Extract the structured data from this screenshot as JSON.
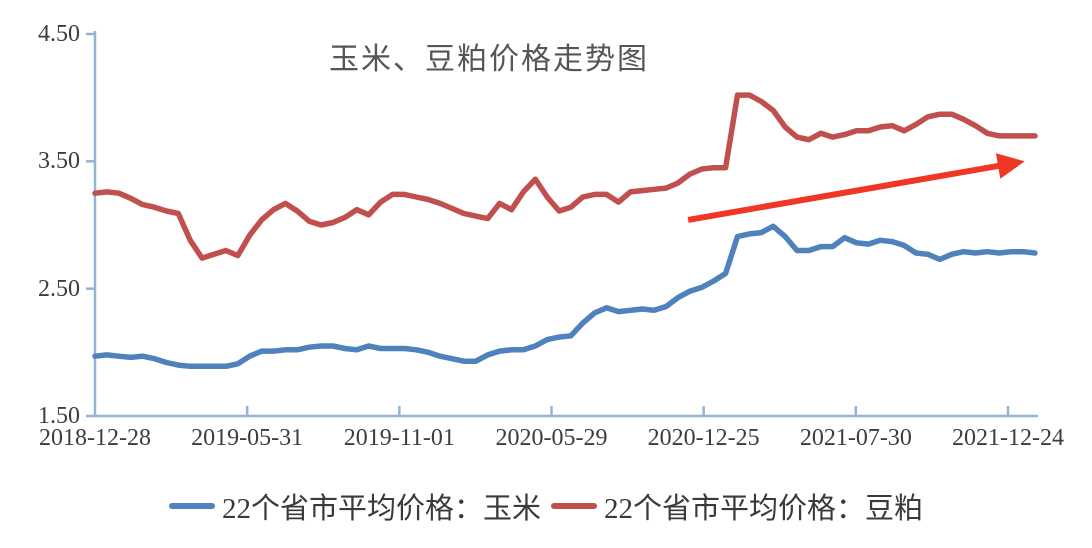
{
  "chart_data": {
    "type": "line",
    "title": "玉米、豆粕价格走势图",
    "xlabel": "",
    "ylabel": "",
    "ylim": [
      1.5,
      4.5
    ],
    "grid": false,
    "legend_position": "bottom",
    "y_ticks": {
      "values": [
        4.5,
        3.5,
        2.5,
        1.5
      ],
      "labels": [
        "4.50",
        "3.50",
        "2.50",
        "1.50"
      ]
    },
    "x_tick_labels": [
      "2018-12-28",
      "2019-05-31",
      "2019-11-01",
      "2020-05-29",
      "2020-12-25",
      "2021-07-30",
      "2021-12-24"
    ],
    "series": [
      {
        "name": "22个省市平均价格：玉米",
        "color": "#4F81BD",
        "values": [
          1.97,
          1.98,
          1.97,
          1.96,
          1.97,
          1.95,
          1.92,
          1.9,
          1.89,
          1.89,
          1.89,
          1.89,
          1.91,
          1.97,
          2.01,
          2.01,
          2.02,
          2.02,
          2.04,
          2.05,
          2.05,
          2.03,
          2.02,
          2.05,
          2.03,
          2.03,
          2.03,
          2.02,
          2.0,
          1.97,
          1.95,
          1.93,
          1.93,
          1.98,
          2.01,
          2.02,
          2.02,
          2.05,
          2.1,
          2.12,
          2.13,
          2.23,
          2.31,
          2.35,
          2.32,
          2.33,
          2.34,
          2.33,
          2.36,
          2.43,
          2.48,
          2.51,
          2.56,
          2.62,
          2.91,
          2.93,
          2.94,
          2.99,
          2.91,
          2.8,
          2.8,
          2.83,
          2.83,
          2.9,
          2.86,
          2.85,
          2.88,
          2.87,
          2.84,
          2.78,
          2.77,
          2.73,
          2.77,
          2.79,
          2.78,
          2.79,
          2.78,
          2.79,
          2.79,
          2.78
        ]
      },
      {
        "name": "22个省市平均价格：豆粕",
        "color": "#C0504D",
        "values": [
          3.25,
          3.26,
          3.25,
          3.21,
          3.16,
          3.14,
          3.11,
          3.09,
          2.88,
          2.74,
          2.77,
          2.8,
          2.76,
          2.92,
          3.04,
          3.12,
          3.17,
          3.11,
          3.03,
          3.0,
          3.02,
          3.06,
          3.12,
          3.08,
          3.18,
          3.24,
          3.24,
          3.22,
          3.2,
          3.17,
          3.13,
          3.09,
          3.07,
          3.05,
          3.17,
          3.12,
          3.26,
          3.36,
          3.22,
          3.11,
          3.14,
          3.22,
          3.24,
          3.24,
          3.18,
          3.26,
          3.27,
          3.28,
          3.29,
          3.33,
          3.4,
          3.44,
          3.45,
          3.45,
          4.02,
          4.02,
          3.97,
          3.9,
          3.77,
          3.69,
          3.67,
          3.72,
          3.69,
          3.71,
          3.74,
          3.74,
          3.77,
          3.78,
          3.74,
          3.79,
          3.85,
          3.87,
          3.87,
          3.83,
          3.78,
          3.72,
          3.7,
          3.7,
          3.7,
          3.7
        ]
      }
    ],
    "annotation": {
      "type": "arrow",
      "color": "#F03723",
      "from": {
        "x_frac": 0.631,
        "value": 3.04
      },
      "to": {
        "x_frac": 0.989,
        "value": 3.5
      }
    }
  },
  "colors": {
    "axis": "#95B3D7",
    "title_text": "#555555",
    "tick_text": "#3d3d3d"
  }
}
